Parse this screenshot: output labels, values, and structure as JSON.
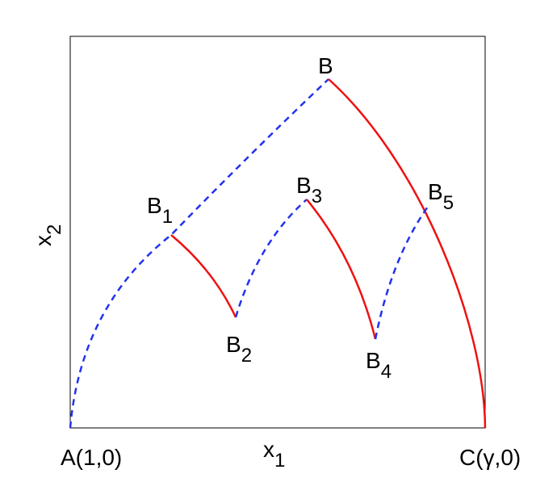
{
  "labels": {
    "A": "A(1,0)",
    "C": "C(γ,0)",
    "B": "B",
    "B1": {
      "base": "B",
      "sub": "1"
    },
    "B2": {
      "base": "B",
      "sub": "2"
    },
    "B3": {
      "base": "B",
      "sub": "3"
    },
    "B4": {
      "base": "B",
      "sub": "4"
    },
    "B5": {
      "base": "B",
      "sub": "5"
    },
    "x1": {
      "base": "x",
      "sub": "1"
    },
    "x2": {
      "base": "x",
      "sub": "2"
    }
  }
}
